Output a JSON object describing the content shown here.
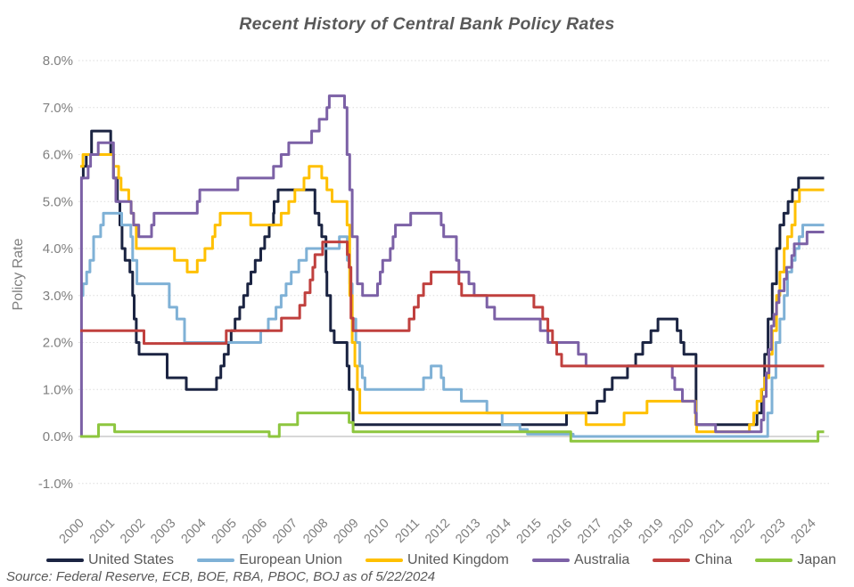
{
  "title": "Recent History of Central Bank Policy Rates",
  "source_note": "Source: Federal Reserve, ECB, BOE, RBA, PBOC, BOJ as of 5/22/2024",
  "colors": {
    "united_states": "#1B2442",
    "european_union": "#7FB1D6",
    "united_kingdom": "#FFC000",
    "australia": "#7C61A6",
    "china": "#C0403E",
    "japan": "#8DC63F",
    "gridline": "#DBDBDB",
    "zero_axis": "#BFBFBF",
    "tick_text": "#7F7F7F",
    "title_text": "#595959"
  },
  "chart_data": {
    "type": "line",
    "step": true,
    "title": "Recent History of Central Bank Policy Rates",
    "xlabel": "",
    "ylabel": "Policy Rate",
    "ylim": [
      -1.0,
      8.0
    ],
    "xlim": [
      2000,
      2024.4
    ],
    "grid": "horizontal-dotted",
    "legend_position": "bottom",
    "y_ticks": [
      8,
      7,
      6,
      5,
      4,
      3,
      2,
      1,
      0,
      -1
    ],
    "y_tick_labels": [
      "8.0%",
      "7.0%",
      "6.0%",
      "5.0%",
      "4.0%",
      "3.0%",
      "2.0%",
      "1.0%",
      "0.0%",
      "-1.0%"
    ],
    "x_ticks": [
      2000,
      2001,
      2002,
      2003,
      2004,
      2005,
      2006,
      2007,
      2008,
      2009,
      2010,
      2011,
      2012,
      2013,
      2014,
      2015,
      2016,
      2017,
      2018,
      2019,
      2020,
      2021,
      2022,
      2023,
      2024
    ],
    "x_tick_labels": [
      "2000",
      "2001",
      "2002",
      "2003",
      "2004",
      "2005",
      "2006",
      "2007",
      "2008",
      "2009",
      "2010",
      "2011",
      "2012",
      "2013",
      "2014",
      "2015",
      "2016",
      "2017",
      "2018",
      "2019",
      "2020",
      "2021",
      "2022",
      "2023",
      "2024"
    ],
    "series": [
      {
        "name": "United States",
        "color": "#1B2442",
        "points": [
          [
            2000,
            5.5
          ],
          [
            2000.1,
            5.75
          ],
          [
            2000.2,
            6.0
          ],
          [
            2000.37,
            6.5
          ],
          [
            2001.0,
            6.0
          ],
          [
            2001.09,
            5.5
          ],
          [
            2001.22,
            5.0
          ],
          [
            2001.3,
            4.5
          ],
          [
            2001.37,
            4.0
          ],
          [
            2001.47,
            3.75
          ],
          [
            2001.63,
            3.5
          ],
          [
            2001.72,
            3.0
          ],
          [
            2001.77,
            2.5
          ],
          [
            2001.84,
            2.0
          ],
          [
            2001.93,
            1.75
          ],
          [
            2002.85,
            1.25
          ],
          [
            2003.48,
            1.0
          ],
          [
            2004.47,
            1.25
          ],
          [
            2004.61,
            1.5
          ],
          [
            2004.72,
            1.75
          ],
          [
            2004.86,
            2.0
          ],
          [
            2004.95,
            2.25
          ],
          [
            2005.08,
            2.5
          ],
          [
            2005.23,
            2.75
          ],
          [
            2005.36,
            3.0
          ],
          [
            2005.49,
            3.25
          ],
          [
            2005.6,
            3.5
          ],
          [
            2005.74,
            3.75
          ],
          [
            2005.92,
            4.0
          ],
          [
            2006.05,
            4.25
          ],
          [
            2006.2,
            4.5
          ],
          [
            2006.34,
            4.75
          ],
          [
            2006.36,
            5.0
          ],
          [
            2006.49,
            5.25
          ],
          [
            2007.7,
            4.75
          ],
          [
            2007.83,
            4.5
          ],
          [
            2007.92,
            4.25
          ],
          [
            2008.06,
            3.5
          ],
          [
            2008.09,
            3.0
          ],
          [
            2008.21,
            2.25
          ],
          [
            2008.33,
            2.0
          ],
          [
            2008.75,
            1.5
          ],
          [
            2008.82,
            1.0
          ],
          [
            2008.95,
            0.25
          ],
          [
            2015.95,
            0.5
          ],
          [
            2016.95,
            0.75
          ],
          [
            2017.2,
            1.0
          ],
          [
            2017.45,
            1.25
          ],
          [
            2017.95,
            1.5
          ],
          [
            2018.22,
            1.75
          ],
          [
            2018.45,
            2.0
          ],
          [
            2018.72,
            2.25
          ],
          [
            2018.95,
            2.5
          ],
          [
            2019.58,
            2.25
          ],
          [
            2019.7,
            2.0
          ],
          [
            2019.8,
            1.75
          ],
          [
            2020.2,
            0.25
          ],
          [
            2022.2,
            0.5
          ],
          [
            2022.35,
            1.0
          ],
          [
            2022.45,
            1.75
          ],
          [
            2022.56,
            2.5
          ],
          [
            2022.7,
            3.25
          ],
          [
            2022.84,
            4.0
          ],
          [
            2022.95,
            4.5
          ],
          [
            2023.08,
            4.75
          ],
          [
            2023.22,
            5.0
          ],
          [
            2023.36,
            5.25
          ],
          [
            2023.56,
            5.5
          ]
        ]
      },
      {
        "name": "European Union",
        "color": "#7FB1D6",
        "points": [
          [
            2000,
            3.0
          ],
          [
            2000.09,
            3.25
          ],
          [
            2000.21,
            3.5
          ],
          [
            2000.32,
            3.75
          ],
          [
            2000.44,
            4.25
          ],
          [
            2000.67,
            4.5
          ],
          [
            2000.76,
            4.75
          ],
          [
            2001.36,
            4.5
          ],
          [
            2001.66,
            4.25
          ],
          [
            2001.72,
            3.75
          ],
          [
            2001.86,
            3.25
          ],
          [
            2002.92,
            2.75
          ],
          [
            2003.17,
            2.5
          ],
          [
            2003.42,
            2.0
          ],
          [
            2005.92,
            2.25
          ],
          [
            2006.17,
            2.5
          ],
          [
            2006.42,
            2.75
          ],
          [
            2006.59,
            3.0
          ],
          [
            2006.75,
            3.25
          ],
          [
            2006.92,
            3.5
          ],
          [
            2007.17,
            3.75
          ],
          [
            2007.42,
            4.0
          ],
          [
            2008.5,
            4.25
          ],
          [
            2008.76,
            3.75
          ],
          [
            2008.84,
            3.25
          ],
          [
            2008.92,
            2.5
          ],
          [
            2009.04,
            2.0
          ],
          [
            2009.17,
            1.5
          ],
          [
            2009.25,
            1.25
          ],
          [
            2009.34,
            1.0
          ],
          [
            2011.26,
            1.25
          ],
          [
            2011.51,
            1.5
          ],
          [
            2011.84,
            1.25
          ],
          [
            2011.92,
            1.0
          ],
          [
            2012.5,
            0.75
          ],
          [
            2013.34,
            0.5
          ],
          [
            2013.84,
            0.25
          ],
          [
            2014.42,
            0.15
          ],
          [
            2014.67,
            0.05
          ],
          [
            2016.17,
            0.0
          ],
          [
            2022.55,
            0.5
          ],
          [
            2022.69,
            1.25
          ],
          [
            2022.82,
            2.0
          ],
          [
            2022.95,
            2.5
          ],
          [
            2023.09,
            3.0
          ],
          [
            2023.2,
            3.5
          ],
          [
            2023.34,
            3.75
          ],
          [
            2023.45,
            4.0
          ],
          [
            2023.58,
            4.25
          ],
          [
            2023.7,
            4.5
          ]
        ]
      },
      {
        "name": "United Kingdom",
        "color": "#FFC000",
        "points": [
          [
            2000,
            5.75
          ],
          [
            2000.09,
            6.0
          ],
          [
            2001.09,
            5.75
          ],
          [
            2001.26,
            5.5
          ],
          [
            2001.34,
            5.25
          ],
          [
            2001.59,
            5.0
          ],
          [
            2001.67,
            4.75
          ],
          [
            2001.75,
            4.5
          ],
          [
            2001.84,
            4.0
          ],
          [
            2003.09,
            3.75
          ],
          [
            2003.51,
            3.5
          ],
          [
            2003.84,
            3.75
          ],
          [
            2004.09,
            4.0
          ],
          [
            2004.34,
            4.25
          ],
          [
            2004.42,
            4.5
          ],
          [
            2004.59,
            4.75
          ],
          [
            2005.59,
            4.5
          ],
          [
            2006.59,
            4.75
          ],
          [
            2006.84,
            5.0
          ],
          [
            2007.04,
            5.25
          ],
          [
            2007.34,
            5.5
          ],
          [
            2007.51,
            5.75
          ],
          [
            2007.92,
            5.5
          ],
          [
            2008.09,
            5.25
          ],
          [
            2008.26,
            5.0
          ],
          [
            2008.75,
            4.5
          ],
          [
            2008.84,
            3.0
          ],
          [
            2008.92,
            2.0
          ],
          [
            2009.01,
            1.5
          ],
          [
            2009.09,
            1.0
          ],
          [
            2009.17,
            0.5
          ],
          [
            2016.59,
            0.25
          ],
          [
            2017.84,
            0.5
          ],
          [
            2018.59,
            0.75
          ],
          [
            2020.19,
            0.25
          ],
          [
            2020.22,
            0.1
          ],
          [
            2021.95,
            0.25
          ],
          [
            2022.09,
            0.5
          ],
          [
            2022.2,
            0.75
          ],
          [
            2022.34,
            1.0
          ],
          [
            2022.45,
            1.25
          ],
          [
            2022.59,
            1.75
          ],
          [
            2022.7,
            2.25
          ],
          [
            2022.84,
            3.0
          ],
          [
            2022.95,
            3.5
          ],
          [
            2023.09,
            4.0
          ],
          [
            2023.2,
            4.25
          ],
          [
            2023.34,
            4.5
          ],
          [
            2023.45,
            5.0
          ],
          [
            2023.59,
            5.25
          ]
        ]
      },
      {
        "name": "Australia",
        "color": "#7C61A6",
        "points": [
          [
            2000,
            0.0
          ],
          [
            2000.04,
            5.5
          ],
          [
            2000.26,
            5.75
          ],
          [
            2000.34,
            6.0
          ],
          [
            2000.59,
            6.25
          ],
          [
            2001.09,
            5.5
          ],
          [
            2001.17,
            5.0
          ],
          [
            2001.67,
            4.75
          ],
          [
            2001.75,
            4.5
          ],
          [
            2001.92,
            4.25
          ],
          [
            2002.34,
            4.5
          ],
          [
            2002.42,
            4.75
          ],
          [
            2003.84,
            5.0
          ],
          [
            2003.92,
            5.25
          ],
          [
            2005.17,
            5.5
          ],
          [
            2006.34,
            5.75
          ],
          [
            2006.59,
            6.0
          ],
          [
            2006.84,
            6.25
          ],
          [
            2007.59,
            6.5
          ],
          [
            2007.84,
            6.75
          ],
          [
            2008.09,
            7.0
          ],
          [
            2008.17,
            7.25
          ],
          [
            2008.67,
            7.0
          ],
          [
            2008.75,
            6.0
          ],
          [
            2008.84,
            5.25
          ],
          [
            2008.92,
            4.25
          ],
          [
            2009.09,
            3.25
          ],
          [
            2009.26,
            3.0
          ],
          [
            2009.75,
            3.25
          ],
          [
            2009.84,
            3.5
          ],
          [
            2009.92,
            3.75
          ],
          [
            2010.17,
            4.0
          ],
          [
            2010.26,
            4.25
          ],
          [
            2010.34,
            4.5
          ],
          [
            2010.84,
            4.75
          ],
          [
            2011.84,
            4.5
          ],
          [
            2011.92,
            4.25
          ],
          [
            2012.34,
            3.75
          ],
          [
            2012.42,
            3.5
          ],
          [
            2012.75,
            3.25
          ],
          [
            2012.92,
            3.0
          ],
          [
            2013.34,
            2.75
          ],
          [
            2013.59,
            2.5
          ],
          [
            2015.09,
            2.25
          ],
          [
            2015.34,
            2.0
          ],
          [
            2016.34,
            1.75
          ],
          [
            2016.59,
            1.5
          ],
          [
            2019.42,
            1.25
          ],
          [
            2019.5,
            1.0
          ],
          [
            2019.75,
            0.75
          ],
          [
            2020.17,
            0.5
          ],
          [
            2020.21,
            0.25
          ],
          [
            2020.84,
            0.1
          ],
          [
            2022.34,
            0.35
          ],
          [
            2022.42,
            0.85
          ],
          [
            2022.5,
            1.35
          ],
          [
            2022.59,
            1.85
          ],
          [
            2022.67,
            2.35
          ],
          [
            2022.75,
            2.6
          ],
          [
            2022.84,
            2.85
          ],
          [
            2022.92,
            3.1
          ],
          [
            2023.09,
            3.35
          ],
          [
            2023.17,
            3.6
          ],
          [
            2023.34,
            3.85
          ],
          [
            2023.42,
            4.1
          ],
          [
            2023.84,
            4.35
          ]
        ]
      },
      {
        "name": "China",
        "color": "#C0403E",
        "points": [
          [
            2000,
            2.25
          ],
          [
            2002.09,
            1.98
          ],
          [
            2004.79,
            2.25
          ],
          [
            2006.6,
            2.52
          ],
          [
            2007.2,
            2.79
          ],
          [
            2007.37,
            3.06
          ],
          [
            2007.54,
            3.33
          ],
          [
            2007.63,
            3.6
          ],
          [
            2007.7,
            3.87
          ],
          [
            2007.95,
            4.14
          ],
          [
            2008.76,
            3.87
          ],
          [
            2008.82,
            3.6
          ],
          [
            2008.88,
            2.52
          ],
          [
            2008.95,
            2.25
          ],
          [
            2010.79,
            2.5
          ],
          [
            2010.95,
            2.75
          ],
          [
            2011.09,
            3.0
          ],
          [
            2011.26,
            3.25
          ],
          [
            2011.51,
            3.5
          ],
          [
            2012.42,
            3.25
          ],
          [
            2012.51,
            3.0
          ],
          [
            2014.88,
            2.75
          ],
          [
            2015.17,
            2.5
          ],
          [
            2015.34,
            2.25
          ],
          [
            2015.49,
            2.0
          ],
          [
            2015.63,
            1.75
          ],
          [
            2015.79,
            1.5
          ]
        ]
      },
      {
        "name": "Japan",
        "color": "#8DC63F",
        "points": [
          [
            2000,
            0.0
          ],
          [
            2000.6,
            0.25
          ],
          [
            2001.13,
            0.1
          ],
          [
            2006.2,
            0.0
          ],
          [
            2006.53,
            0.25
          ],
          [
            2007.13,
            0.5
          ],
          [
            2008.82,
            0.3
          ],
          [
            2008.95,
            0.1
          ],
          [
            2016.09,
            -0.1
          ],
          [
            2024.2,
            0.1
          ]
        ]
      }
    ]
  }
}
